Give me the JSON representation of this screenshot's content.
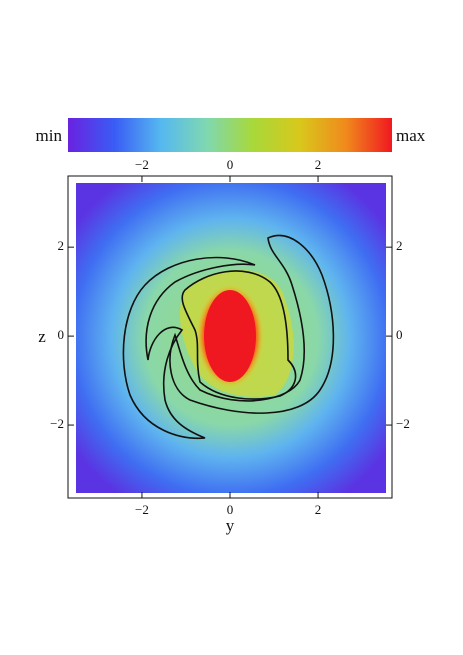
{
  "chart_data": {
    "type": "heatmap",
    "xlabel": "y",
    "ylabel": "z",
    "xlim": [
      -3.68,
      3.68
    ],
    "ylim": [
      -3.64,
      3.6
    ],
    "xticks": [
      {
        "value": -2,
        "label": "−2"
      },
      0,
      2
    ],
    "yticks": [
      {
        "value": -2,
        "label": "−2"
      },
      0,
      2
    ],
    "colorbar": {
      "min_label": "min",
      "max_label": "max",
      "colors": [
        "#6a22e0",
        "#3a5cf5",
        "#55b8f0",
        "#7fd8b0",
        "#a8d83a",
        "#d8c81c",
        "#f08a1c",
        "#f01820"
      ]
    }
  }
}
